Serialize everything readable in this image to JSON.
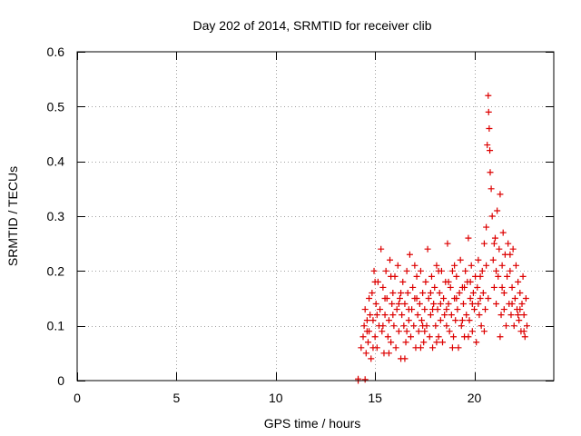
{
  "chart_data": {
    "type": "scatter",
    "title": "Day 202 of 2014, SRMTID for receiver clib",
    "xlabel": "GPS time / hours",
    "ylabel": "SRMTID / TECUs",
    "xlim": [
      0,
      24
    ],
    "ylim": [
      0,
      0.6
    ],
    "xticks": [
      0,
      5,
      10,
      15,
      20
    ],
    "yticks": [
      0,
      0.1,
      0.2,
      0.3,
      0.4,
      0.5,
      0.6
    ],
    "xtick_labels": [
      "0",
      "5",
      "10",
      "15",
      "20"
    ],
    "ytick_labels": [
      "0",
      "0.1",
      "0.2",
      "0.3",
      "0.4",
      "0.5",
      "0.6"
    ],
    "grid": true,
    "marker": "+",
    "color": "#dd0000",
    "series": [
      {
        "name": "SRMTID",
        "points": [
          [
            14.15,
            0.0
          ],
          [
            14.15,
            0.003
          ],
          [
            14.5,
            0.002
          ],
          [
            14.3,
            0.06
          ],
          [
            14.4,
            0.08
          ],
          [
            14.45,
            0.1
          ],
          [
            14.5,
            0.13
          ],
          [
            14.55,
            0.05
          ],
          [
            14.6,
            0.09
          ],
          [
            14.65,
            0.07
          ],
          [
            14.7,
            0.15
          ],
          [
            14.75,
            0.12
          ],
          [
            14.8,
            0.04
          ],
          [
            14.85,
            0.16
          ],
          [
            14.9,
            0.11
          ],
          [
            14.95,
            0.2
          ],
          [
            15.0,
            0.08
          ],
          [
            15.05,
            0.14
          ],
          [
            15.1,
            0.06
          ],
          [
            15.15,
            0.18
          ],
          [
            15.2,
            0.1
          ],
          [
            15.25,
            0.13
          ],
          [
            15.3,
            0.24
          ],
          [
            15.35,
            0.09
          ],
          [
            15.4,
            0.17
          ],
          [
            15.45,
            0.05
          ],
          [
            15.5,
            0.12
          ],
          [
            15.55,
            0.2
          ],
          [
            15.6,
            0.15
          ],
          [
            15.65,
            0.08
          ],
          [
            15.7,
            0.11
          ],
          [
            15.75,
            0.22
          ],
          [
            15.8,
            0.07
          ],
          [
            15.85,
            0.14
          ],
          [
            15.9,
            0.16
          ],
          [
            15.95,
            0.1
          ],
          [
            16.0,
            0.19
          ],
          [
            16.05,
            0.06
          ],
          [
            16.1,
            0.13
          ],
          [
            16.15,
            0.21
          ],
          [
            16.2,
            0.09
          ],
          [
            16.25,
            0.15
          ],
          [
            16.3,
            0.04
          ],
          [
            16.35,
            0.12
          ],
          [
            16.4,
            0.18
          ],
          [
            16.45,
            0.1
          ],
          [
            16.5,
            0.14
          ],
          [
            16.55,
            0.07
          ],
          [
            16.6,
            0.2
          ],
          [
            16.65,
            0.16
          ],
          [
            16.7,
            0.11
          ],
          [
            16.75,
            0.23
          ],
          [
            16.8,
            0.08
          ],
          [
            16.85,
            0.13
          ],
          [
            16.9,
            0.17
          ],
          [
            16.95,
            0.1
          ],
          [
            17.0,
            0.15
          ],
          [
            17.05,
            0.06
          ],
          [
            17.1,
            0.19
          ],
          [
            17.15,
            0.12
          ],
          [
            17.2,
            0.09
          ],
          [
            17.25,
            0.14
          ],
          [
            17.3,
            0.2
          ],
          [
            17.35,
            0.11
          ],
          [
            17.4,
            0.16
          ],
          [
            17.45,
            0.07
          ],
          [
            17.5,
            0.13
          ],
          [
            17.55,
            0.18
          ],
          [
            17.6,
            0.1
          ],
          [
            17.65,
            0.24
          ],
          [
            17.7,
            0.15
          ],
          [
            17.75,
            0.08
          ],
          [
            17.8,
            0.12
          ],
          [
            17.85,
            0.19
          ],
          [
            17.9,
            0.06
          ],
          [
            17.95,
            0.14
          ],
          [
            18.0,
            0.17
          ],
          [
            18.05,
            0.1
          ],
          [
            18.1,
            0.21
          ],
          [
            18.15,
            0.13
          ],
          [
            18.2,
            0.08
          ],
          [
            18.25,
            0.16
          ],
          [
            18.3,
            0.11
          ],
          [
            18.35,
            0.2
          ],
          [
            18.4,
            0.07
          ],
          [
            18.45,
            0.15
          ],
          [
            18.5,
            0.12
          ],
          [
            18.55,
            0.18
          ],
          [
            18.6,
            0.1
          ],
          [
            18.65,
            0.25
          ],
          [
            18.7,
            0.14
          ],
          [
            18.75,
            0.09
          ],
          [
            18.8,
            0.17
          ],
          [
            18.85,
            0.12
          ],
          [
            18.9,
            0.2
          ],
          [
            18.95,
            0.08
          ],
          [
            19.0,
            0.15
          ],
          [
            19.05,
            0.11
          ],
          [
            19.1,
            0.19
          ],
          [
            19.15,
            0.13
          ],
          [
            19.2,
            0.06
          ],
          [
            19.25,
            0.16
          ],
          [
            19.3,
            0.22
          ],
          [
            19.35,
            0.1
          ],
          [
            19.4,
            0.17
          ],
          [
            19.45,
            0.14
          ],
          [
            19.5,
            0.08
          ],
          [
            19.55,
            0.2
          ],
          [
            19.6,
            0.12
          ],
          [
            19.65,
            0.18
          ],
          [
            19.7,
            0.26
          ],
          [
            19.75,
            0.11
          ],
          [
            19.8,
            0.15
          ],
          [
            19.85,
            0.21
          ],
          [
            19.9,
            0.09
          ],
          [
            19.95,
            0.16
          ],
          [
            20.0,
            0.13
          ],
          [
            20.05,
            0.19
          ],
          [
            20.1,
            0.07
          ],
          [
            20.15,
            0.17
          ],
          [
            20.2,
            0.22
          ],
          [
            20.25,
            0.12
          ],
          [
            20.3,
            0.15
          ],
          [
            20.35,
            0.1
          ],
          [
            20.4,
            0.2
          ],
          [
            20.45,
            0.16
          ],
          [
            20.5,
            0.25
          ],
          [
            20.55,
            0.13
          ],
          [
            20.6,
            0.28
          ],
          [
            20.65,
            0.43
          ],
          [
            20.7,
            0.52
          ],
          [
            20.72,
            0.49
          ],
          [
            20.75,
            0.46
          ],
          [
            20.78,
            0.42
          ],
          [
            20.8,
            0.38
          ],
          [
            20.85,
            0.35
          ],
          [
            20.9,
            0.3
          ],
          [
            20.95,
            0.22
          ],
          [
            21.0,
            0.17
          ],
          [
            21.05,
            0.26
          ],
          [
            21.1,
            0.14
          ],
          [
            21.15,
            0.31
          ],
          [
            21.2,
            0.19
          ],
          [
            21.25,
            0.24
          ],
          [
            21.3,
            0.34
          ],
          [
            21.35,
            0.12
          ],
          [
            21.4,
            0.21
          ],
          [
            21.45,
            0.27
          ],
          [
            21.5,
            0.16
          ],
          [
            21.55,
            0.23
          ],
          [
            21.6,
            0.1
          ],
          [
            21.65,
            0.19
          ],
          [
            21.7,
            0.25
          ],
          [
            21.75,
            0.14
          ],
          [
            21.8,
            0.2
          ],
          [
            21.85,
            0.12
          ],
          [
            21.9,
            0.17
          ],
          [
            21.95,
            0.24
          ],
          [
            22.0,
            0.1
          ],
          [
            22.05,
            0.15
          ],
          [
            22.1,
            0.21
          ],
          [
            22.15,
            0.13
          ],
          [
            22.2,
            0.18
          ],
          [
            22.25,
            0.11
          ],
          [
            22.3,
            0.16
          ],
          [
            22.35,
            0.09
          ],
          [
            22.4,
            0.14
          ],
          [
            22.45,
            0.19
          ],
          [
            22.5,
            0.12
          ],
          [
            22.55,
            0.08
          ],
          [
            22.6,
            0.15
          ],
          [
            22.65,
            0.1
          ],
          [
            14.6,
            0.11
          ],
          [
            15.0,
            0.18
          ],
          [
            15.4,
            0.1
          ],
          [
            15.8,
            0.19
          ],
          [
            16.2,
            0.14
          ],
          [
            16.6,
            0.09
          ],
          [
            17.0,
            0.21
          ],
          [
            17.4,
            0.1
          ],
          [
            17.8,
            0.16
          ],
          [
            18.2,
            0.2
          ],
          [
            18.6,
            0.13
          ],
          [
            19.0,
            0.21
          ],
          [
            19.4,
            0.11
          ],
          [
            19.8,
            0.18
          ],
          [
            20.2,
            0.14
          ],
          [
            20.6,
            0.21
          ],
          [
            21.0,
            0.25
          ],
          [
            21.4,
            0.17
          ],
          [
            21.8,
            0.23
          ],
          [
            22.2,
            0.12
          ],
          [
            14.7,
            0.09
          ],
          [
            15.1,
            0.12
          ],
          [
            15.5,
            0.15
          ],
          [
            15.9,
            0.12
          ],
          [
            16.3,
            0.16
          ],
          [
            16.7,
            0.13
          ],
          [
            17.1,
            0.15
          ],
          [
            17.5,
            0.09
          ],
          [
            17.9,
            0.13
          ],
          [
            18.3,
            0.14
          ],
          [
            18.7,
            0.18
          ],
          [
            19.1,
            0.15
          ],
          [
            19.5,
            0.17
          ],
          [
            19.9,
            0.14
          ],
          [
            20.3,
            0.19
          ],
          [
            20.7,
            0.15
          ],
          [
            21.1,
            0.2
          ],
          [
            21.5,
            0.13
          ],
          [
            21.9,
            0.14
          ],
          [
            22.3,
            0.13
          ],
          [
            14.9,
            0.06
          ],
          [
            15.7,
            0.05
          ],
          [
            16.5,
            0.04
          ],
          [
            17.3,
            0.06
          ],
          [
            18.1,
            0.07
          ],
          [
            18.9,
            0.06
          ],
          [
            19.7,
            0.08
          ],
          [
            20.5,
            0.09
          ],
          [
            21.3,
            0.08
          ],
          [
            22.5,
            0.09
          ]
        ]
      }
    ]
  }
}
